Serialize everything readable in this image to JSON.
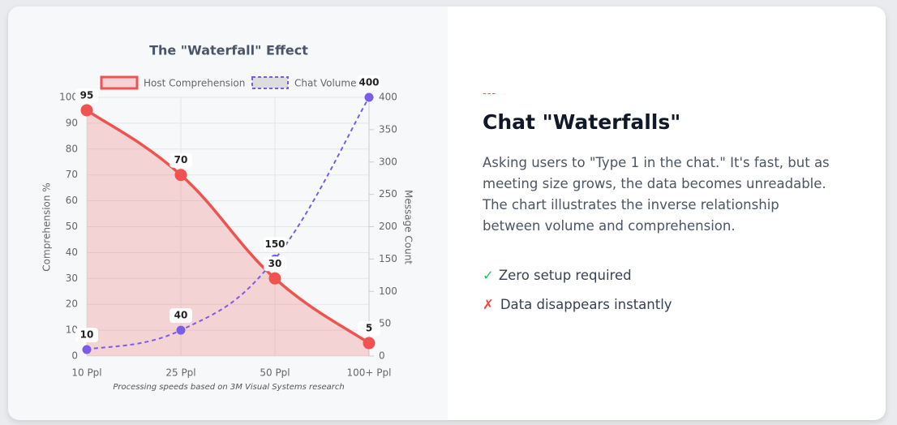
{
  "chart_data": {
    "type": "line",
    "title": "The \"Waterfall\" Effect",
    "categories": [
      "10 Ppl",
      "25 Ppl",
      "50 Ppl",
      "100+ Ppl"
    ],
    "series": [
      {
        "name": "Host Comprehension",
        "color": "#ef5350",
        "fill": true,
        "values": [
          95,
          70,
          30,
          5
        ]
      },
      {
        "name": "Chat Volume",
        "color": "#7b5ce6",
        "dashed": true,
        "axis": "y2",
        "values": [
          10,
          40,
          150,
          400
        ]
      }
    ],
    "ylim": [
      0,
      100
    ],
    "yticks": [
      0,
      10,
      20,
      30,
      40,
      50,
      60,
      70,
      80,
      90,
      100
    ],
    "y2lim": [
      0,
      400
    ],
    "y2ticks": [
      0,
      50,
      100,
      150,
      200,
      250,
      300,
      350,
      400
    ],
    "ylabel": "Comprehension %",
    "y2label": "Message Count",
    "footnote": "Processing speeds based on 3M Visual Systems research",
    "grid": true,
    "legend": "top"
  },
  "panel": {
    "divider": "---",
    "heading": "Chat \"Waterfalls\"",
    "body": "Asking users to \"Type 1 in the chat.\" It's fast, but as meeting size grows, the data becomes unreadable. The chart illustrates the inverse relationship between volume and comprehension.",
    "items": [
      {
        "icon": "✓",
        "text": "Zero setup required"
      },
      {
        "icon": "✗",
        "text": "Data disappears instantly"
      }
    ]
  }
}
